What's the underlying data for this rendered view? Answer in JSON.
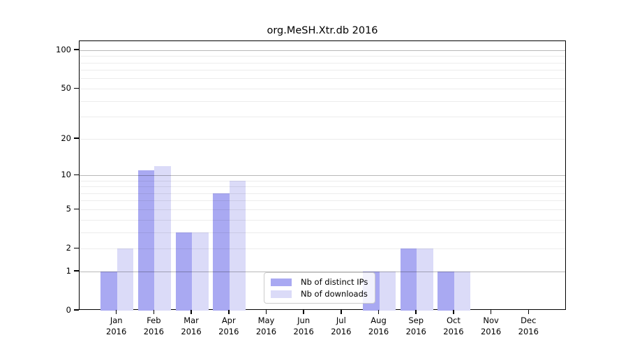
{
  "title": "org.MeSH.Xtr.db 2016",
  "chart_data": {
    "type": "bar",
    "title": "org.MeSH.Xtr.db 2016",
    "categories": [
      "Jan",
      "Feb",
      "Mar",
      "Apr",
      "May",
      "Jun",
      "Jul",
      "Aug",
      "Sep",
      "Oct",
      "Nov",
      "Dec"
    ],
    "category_year": "2016",
    "series": [
      {
        "name": "Nb of distinct IPs",
        "color": "#a9a9f2",
        "values": [
          1,
          11,
          3,
          7,
          0,
          0,
          0,
          1,
          2,
          1,
          0,
          0
        ]
      },
      {
        "name": "Nb of downloads",
        "color": "#dbdbf8",
        "values": [
          2,
          12,
          3,
          9,
          0,
          0,
          0,
          1,
          2,
          1,
          0,
          0
        ]
      }
    ],
    "xlabel": "",
    "ylabel": "",
    "yscale": "log1p",
    "ylim": [
      0,
      118
    ],
    "yticks": [
      0,
      1,
      2,
      5,
      10,
      20,
      50,
      100
    ],
    "major_gridlines": [
      1,
      10,
      100
    ],
    "minor_gridlines": [
      2,
      3,
      4,
      5,
      6,
      7,
      8,
      9,
      20,
      30,
      40,
      50,
      60,
      70,
      80,
      90
    ],
    "grid": true,
    "legend_position": "inside lower center"
  }
}
